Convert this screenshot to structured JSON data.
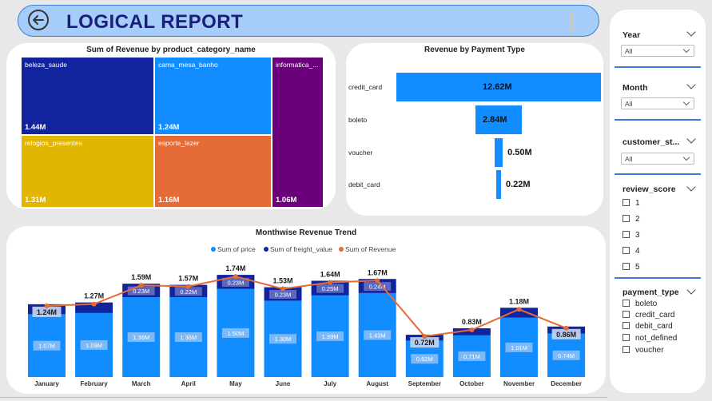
{
  "header": {
    "title": "LOGICAL REPORT"
  },
  "treemap": {
    "title": "Sum of Revenue by product_category_name",
    "tiles": [
      {
        "label": "beleza_saude",
        "value": "1.44M",
        "color": "#12239e"
      },
      {
        "label": "cama_mesa_banho",
        "value": "1.24M",
        "color": "#118dff"
      },
      {
        "label": "informatica_...",
        "value": "1.06M",
        "color": "#6b007b"
      },
      {
        "label": "relogios_presentes",
        "value": "1.31M",
        "color": "#e0b600"
      },
      {
        "label": "esporte_lazer",
        "value": "1.16M",
        "color": "#e66c37"
      }
    ]
  },
  "payment": {
    "title": "Revenue by Payment Type",
    "rows": [
      {
        "label": "credit_card",
        "value": 12.62,
        "text": "12.62M"
      },
      {
        "label": "boleto",
        "value": 2.84,
        "text": "2.84M"
      },
      {
        "label": "voucher",
        "value": 0.5,
        "text": "0.50M"
      },
      {
        "label": "debit_card",
        "value": 0.22,
        "text": "0.22M"
      }
    ]
  },
  "monthly": {
    "title": "Monthwise Revenue Trend",
    "legend": [
      "Sum of price",
      "Sum of freight_value",
      "Sum of Revenue"
    ],
    "colors": {
      "price": "#118dff",
      "freight": "#12239e",
      "revenue": "#e66c37"
    }
  },
  "chart_data": {
    "type": "bar",
    "title": "Monthwise Revenue Trend",
    "categories": [
      "January",
      "February",
      "March",
      "April",
      "May",
      "June",
      "July",
      "August",
      "September",
      "October",
      "November",
      "December"
    ],
    "series": [
      {
        "name": "Sum of price",
        "values": [
          1.07,
          1.09,
          1.36,
          1.36,
          1.5,
          1.3,
          1.39,
          1.43,
          0.62,
          0.71,
          1.01,
          0.74
        ],
        "labels": [
          "1.07M",
          "1.09M",
          "1.36M",
          "1.36M",
          "1.50M",
          "1.30M",
          "1.39M",
          "1.43M",
          "0.62M",
          "0.71M",
          "1.01M",
          "0.74M"
        ]
      },
      {
        "name": "Sum of freight_value",
        "values": [
          0.17,
          0.18,
          0.23,
          0.22,
          0.23,
          0.23,
          0.25,
          0.24,
          0.1,
          0.12,
          0.17,
          0.12
        ],
        "labels": [
          "",
          "",
          "0.23M",
          "0.22M",
          "0.23M",
          "0.23M",
          "0.25M",
          "0.24M",
          "",
          "",
          "",
          ""
        ]
      },
      {
        "name": "Sum of Revenue",
        "values": [
          1.24,
          1.27,
          1.59,
          1.57,
          1.74,
          1.53,
          1.64,
          1.67,
          0.72,
          0.83,
          1.18,
          0.86
        ],
        "labels": [
          "1.24M",
          "1.27M",
          "1.59M",
          "1.57M",
          "1.74M",
          "1.53M",
          "1.64M",
          "1.67M",
          "0.72M",
          "0.83M",
          "1.18M",
          "0.86M"
        ]
      }
    ],
    "ylim": [
      0,
      1.9
    ],
    "legend_position": "top-center"
  },
  "slicers": {
    "year": {
      "title": "Year",
      "value": "All"
    },
    "month": {
      "title": "Month",
      "value": "All"
    },
    "customer": {
      "title": "customer_st...",
      "value": "All"
    },
    "review": {
      "title": "review_score",
      "options": [
        "1",
        "2",
        "3",
        "4",
        "5"
      ]
    },
    "payment": {
      "title": "payment_type",
      "options": [
        "boleto",
        "credit_card",
        "debit_card",
        "not_defined",
        "voucher"
      ]
    }
  }
}
